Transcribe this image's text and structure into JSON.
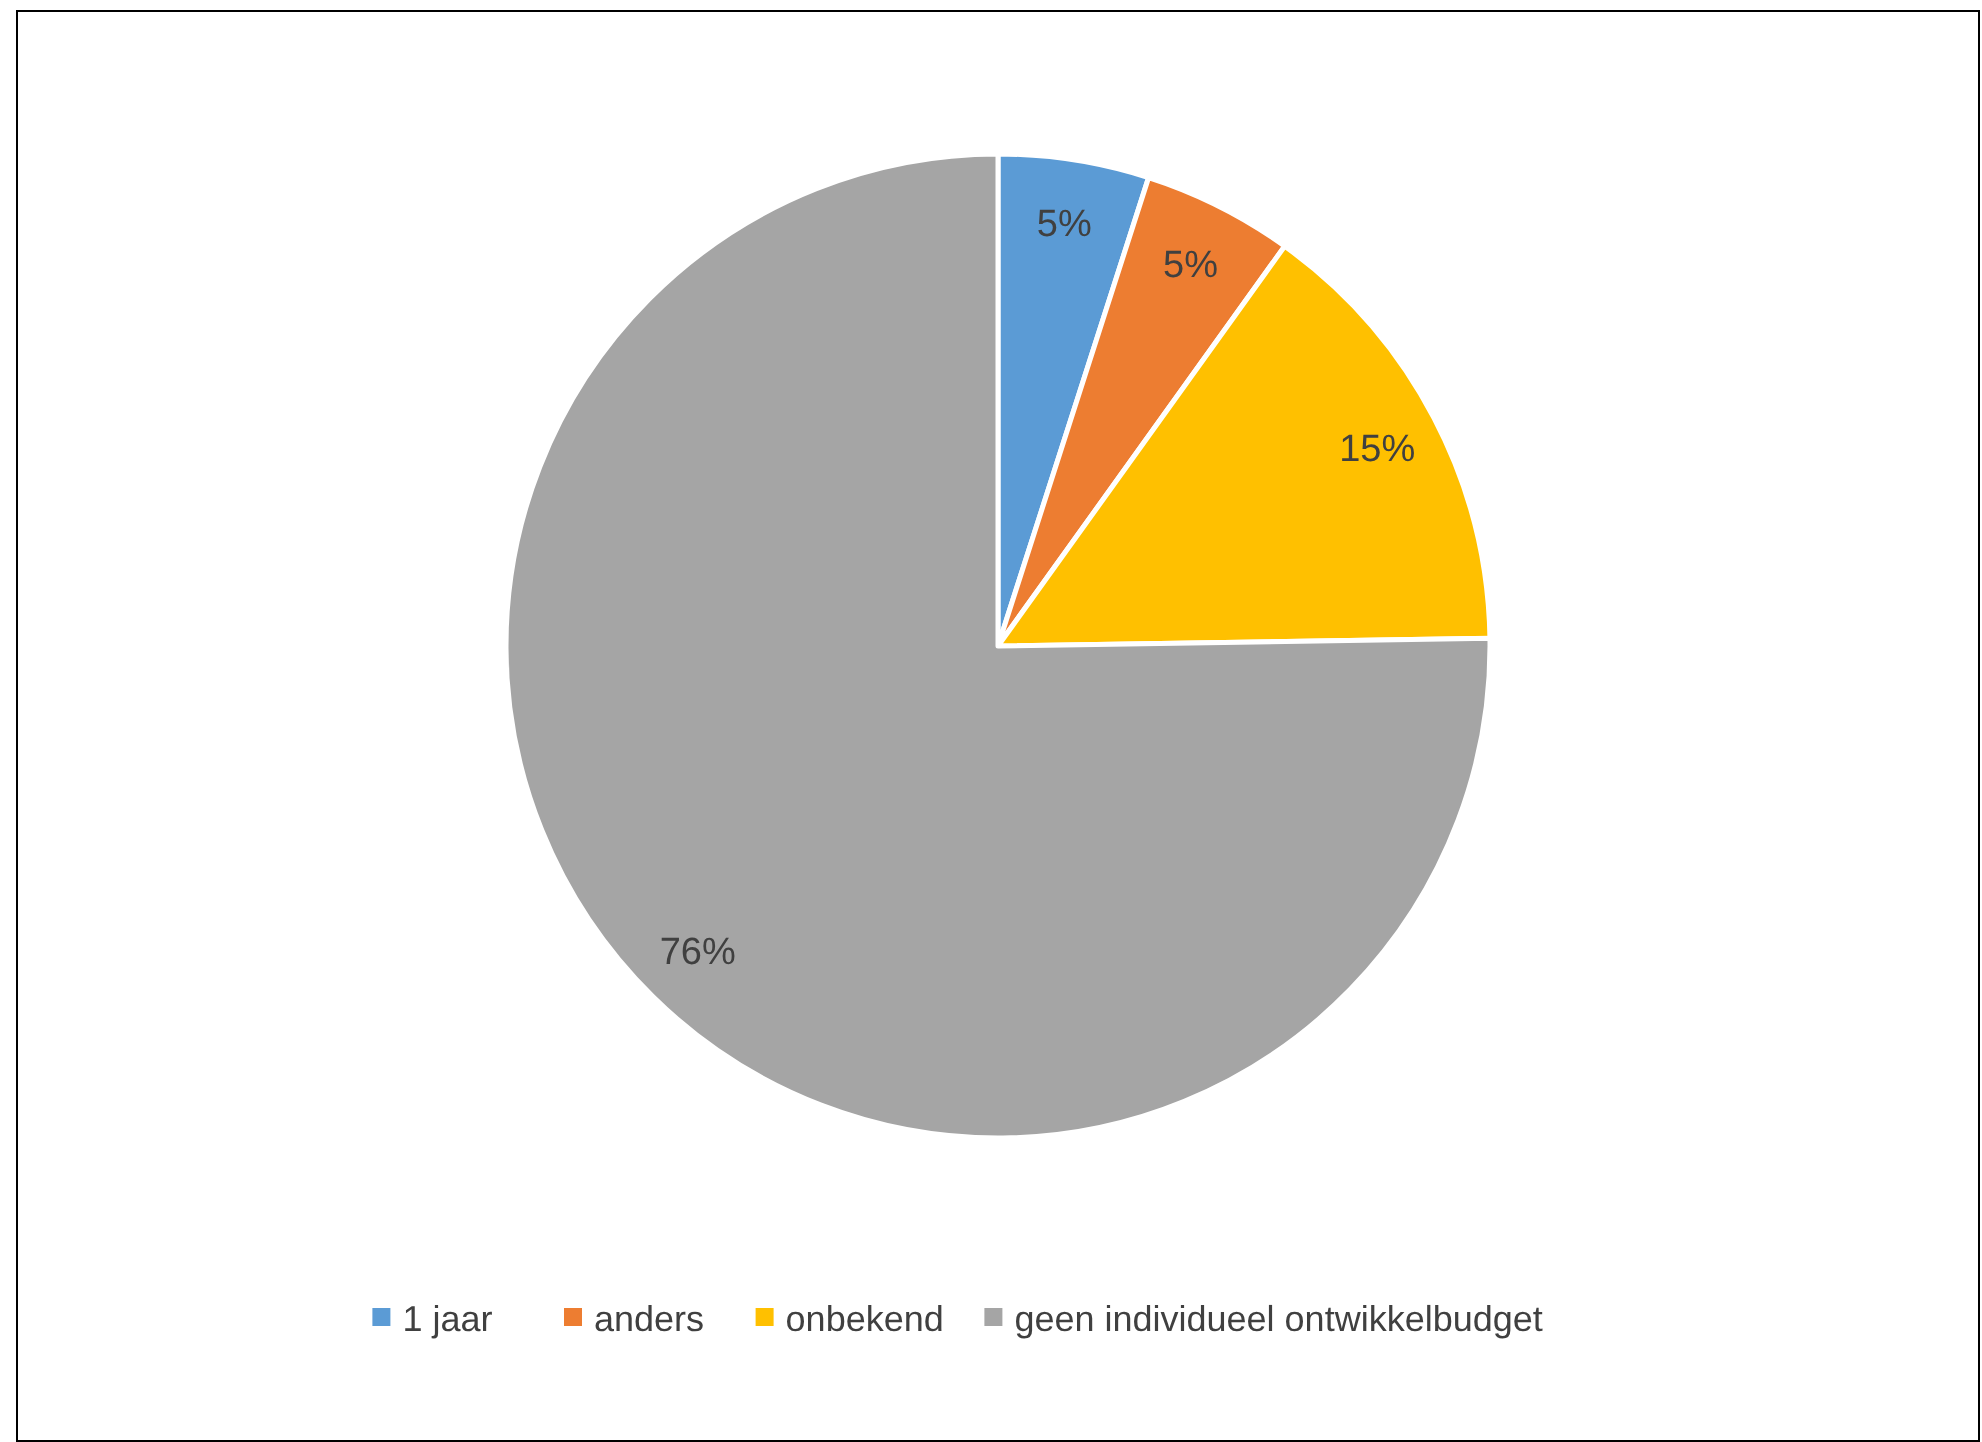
{
  "chart_data": {
    "type": "pie",
    "categories": [
      "1 jaar",
      "anders",
      "onbekend",
      "geen individueel ontwikkelbudget"
    ],
    "values": [
      5,
      5,
      15,
      76
    ],
    "colors": [
      "#5b9bd5",
      "#ed7d31",
      "#ffc000",
      "#a5a5a5"
    ],
    "value_labels": [
      "5%",
      "5%",
      "15%",
      "76%"
    ],
    "legend": "bottom"
  }
}
